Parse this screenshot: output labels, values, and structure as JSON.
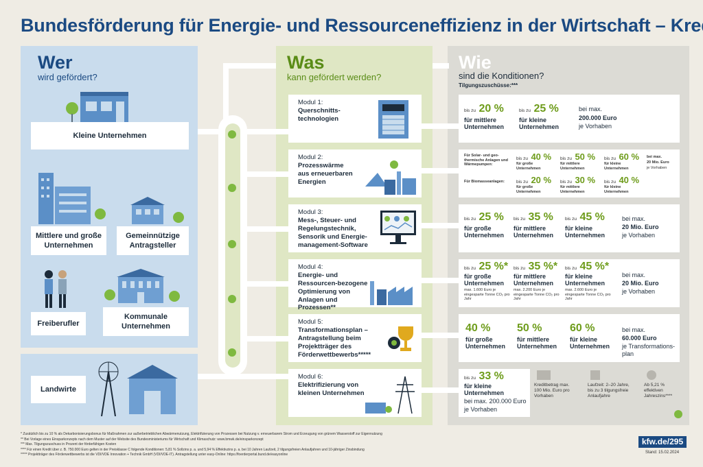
{
  "title": "Bundesförderung für Energie- und Ressourceneffizienz in der Wirtschaft – Kredit",
  "wer": {
    "head": "Wer",
    "sub": "wird gefördert?",
    "items": [
      "Kleine Unternehmen",
      "Mittlere und große Unternehmen",
      "Gemeinnützige Antragsteller",
      "Freiberufler",
      "Kommunale Unternehmen",
      "Landwirte"
    ]
  },
  "was": {
    "head": "Was",
    "sub": "kann gefördert werden?",
    "modules": [
      {
        "label": "Modul 1:",
        "text": "Querschnitts-technologien"
      },
      {
        "label": "Modul 2:",
        "text": "Prozesswärme aus erneuerbaren Energien"
      },
      {
        "label": "Modul 3:",
        "text": "Mess-, Steuer- und Regelungstechnik, Sensorik und Energie-management-Software"
      },
      {
        "label": "Modul 4:",
        "text": "Energie- und Ressourcen-bezogene Optimierung von Anlagen und Prozessen**"
      },
      {
        "label": "Modul 5:",
        "text": "Transformationsplan – Antragstellung beim Projektträger des Förderwettbewerbs*****"
      },
      {
        "label": "Modul 6:",
        "text": "Elektrifizierung von kleinen Unternehmen"
      }
    ]
  },
  "wie": {
    "head": "Wie",
    "sub": "sind die Konditionen?",
    "tilgung": "Tilgungszuschüsse:***"
  },
  "common": {
    "bis": "bis zu",
    "bei_max": "bei max.",
    "je_vorhaben": "je Vorhaben"
  },
  "m1": {
    "p1": "20 %",
    "l1": "für mittlere Unternehmen",
    "p2": "25 %",
    "l2": "für kleine Unternehmen",
    "amount": "200.000 Euro"
  },
  "m2": {
    "solar": "Für Solar- und geo-thermische Anlagen und Wärmepumpen:",
    "bio": "Für Biomasseanlagen:",
    "s": [
      "40 %",
      "50 %",
      "60 %"
    ],
    "b": [
      "20 %",
      "30 %",
      "40 %"
    ],
    "sl": [
      "für große Unternehmen",
      "für mittlere Unternehmen",
      "für kleine Unternehmen"
    ],
    "amount": "20 Mio. Euro"
  },
  "m3": {
    "p": [
      "25 %",
      "35 %",
      "45 %"
    ],
    "l": [
      "für große Unternehmen",
      "für mittlere Unternehmen",
      "für kleine Unternehmen"
    ],
    "amount": "20 Mio. Euro"
  },
  "m4": {
    "p": [
      "25 %*",
      "35 %*",
      "45 %*"
    ],
    "l": [
      "für große Unternehmen",
      "für mittlere Unternehmen",
      "für kleine Unternehmen"
    ],
    "n": [
      "max. 1.600 Euro je eingesparte Tonne CO₂ pro Jahr",
      "max. 2.200 Euro je eingesparte Tonne CO₂ pro Jahr",
      "max. 2.600 Euro je eingesparte Tonne CO₂ pro Jahr"
    ],
    "amount": "20 Mio. Euro"
  },
  "m5": {
    "p": [
      "40 %",
      "50 %",
      "60 %"
    ],
    "l": [
      "für große Unternehmen",
      "für mittlere Unternehmen",
      "für kleine Unternehmen"
    ],
    "amount": "60.000 Euro",
    "je": "je Transformations-plan"
  },
  "m6": {
    "p": "33 %",
    "l": "für kleine Unternehmen",
    "amount": "bei max. 200.000 Euro",
    "k1": "Kreditbetrag max. 100 Mio. Euro pro Vorhaben",
    "k2": "Laufzeit: 2–20 Jahre, bis zu 3 tilgungsfreie Anlaufjahre",
    "k3": "Ab 5,21 % effektiven Jahreszins****"
  },
  "footnotes": [
    "*   Zusätzlich bis zu 10 % als Dekarbonisierungsbonus für Maßnahmen zur außerbetrieblichen Abwärmenutzung, Elektrifizierung von Prozessen bei Nutzung v. erneuerbarem Strom und Erzeugung von grünem Wasserstoff zur Eigennutzung",
    "**  Bei Vorlage eines Einsparkonzepts nach dem Muster auf der Website des Bundesministeriums für Wirtschaft und Klimaschutz: www.bmwk.de/einsparkonzept",
    "*** Max. Tilgungszuschuss in Prozent der förderfähigen Kosten",
    "**** Für einen Kredit über z. B. 750.000 Euro gelten in der Preisklasse C folgende Konditionen: 5,81 % Sollzins p. a. und 5,94 % Effektivzins p. a. bei 10 Jahren Laufzeit, 2 tilgungsfreien Anlaufjahren und 10-jähriger Zinsbindung",
    "***** Projektträger des Förderwettbewerbs ist die VDI/VDE Innovation + Technik GmbH (VDI/VDE-IT). Antragstellung unter easy-Online: https://foerderportal.bund.de/easyonline"
  ],
  "badge": "kfw.de/295",
  "stand": "Stand: 15.02.2024"
}
